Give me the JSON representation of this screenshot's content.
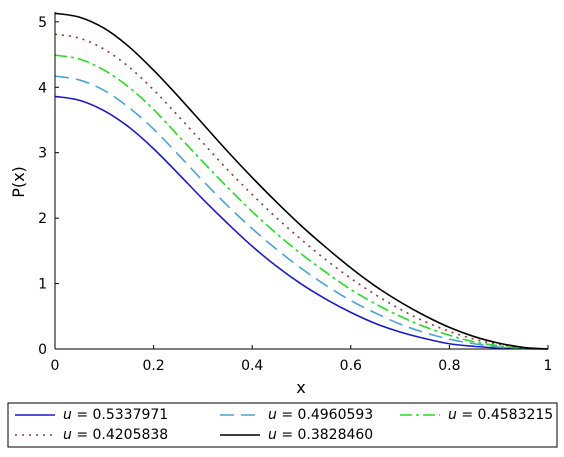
{
  "chart_data": {
    "type": "line",
    "xlabel": "x",
    "ylabel": "P(x)",
    "xlim": [
      0,
      1
    ],
    "ylim": [
      0,
      5.15
    ],
    "xticks": [
      "0",
      "0.2",
      "0.4",
      "0.6",
      "0.8",
      "1"
    ],
    "yticks": [
      "0",
      "1",
      "2",
      "3",
      "4",
      "5"
    ],
    "legend_position": "bottom",
    "x": [
      0,
      0.05,
      0.1,
      0.15,
      0.2,
      0.25,
      0.3,
      0.35,
      0.4,
      0.45,
      0.5,
      0.55,
      0.6,
      0.65,
      0.7,
      0.75,
      0.8,
      0.85,
      0.9,
      0.95,
      1
    ],
    "series": [
      {
        "name": "u = 0.5337971",
        "legend_var": "u",
        "legend_value": " = 0.5337971",
        "color": "#1a1acc",
        "dash": "",
        "values": [
          3.86,
          3.8,
          3.64,
          3.39,
          3.06,
          2.68,
          2.29,
          1.92,
          1.57,
          1.26,
          0.99,
          0.76,
          0.56,
          0.39,
          0.26,
          0.16,
          0.08,
          0.04,
          0.015,
          0.004,
          0
        ]
      },
      {
        "name": "u = 0.4960593",
        "legend_var": "u",
        "legend_value": " = 0.4960593",
        "color": "#4aa3d6",
        "dash": "14,7",
        "values": [
          4.17,
          4.11,
          3.95,
          3.69,
          3.36,
          2.97,
          2.57,
          2.19,
          1.84,
          1.52,
          1.23,
          0.97,
          0.74,
          0.55,
          0.38,
          0.25,
          0.15,
          0.08,
          0.03,
          0.008,
          0
        ]
      },
      {
        "name": "u = 0.4583215",
        "legend_var": "u",
        "legend_value": " = 0.4583215",
        "color": "#22dd22",
        "dash": "12,4,3,4",
        "values": [
          4.49,
          4.43,
          4.26,
          4.0,
          3.66,
          3.26,
          2.86,
          2.47,
          2.1,
          1.76,
          1.45,
          1.17,
          0.91,
          0.69,
          0.5,
          0.34,
          0.21,
          0.11,
          0.05,
          0.012,
          0
        ]
      },
      {
        "name": "u = 0.4205838",
        "legend_var": "u",
        "legend_value": " = 0.4205838",
        "color": "#993333",
        "dash": "2,5",
        "values": [
          4.81,
          4.75,
          4.58,
          4.31,
          3.96,
          3.56,
          3.15,
          2.74,
          2.36,
          2.0,
          1.67,
          1.36,
          1.08,
          0.83,
          0.61,
          0.42,
          0.27,
          0.15,
          0.07,
          0.018,
          0
        ]
      },
      {
        "name": "u = 0.3828460",
        "legend_var": "u",
        "legend_value": " = 0.3828460",
        "color": "#000000",
        "dash": "",
        "values": [
          5.13,
          5.07,
          4.9,
          4.62,
          4.26,
          3.86,
          3.44,
          3.02,
          2.62,
          2.24,
          1.88,
          1.55,
          1.24,
          0.96,
          0.72,
          0.51,
          0.33,
          0.19,
          0.09,
          0.025,
          0
        ]
      }
    ]
  }
}
